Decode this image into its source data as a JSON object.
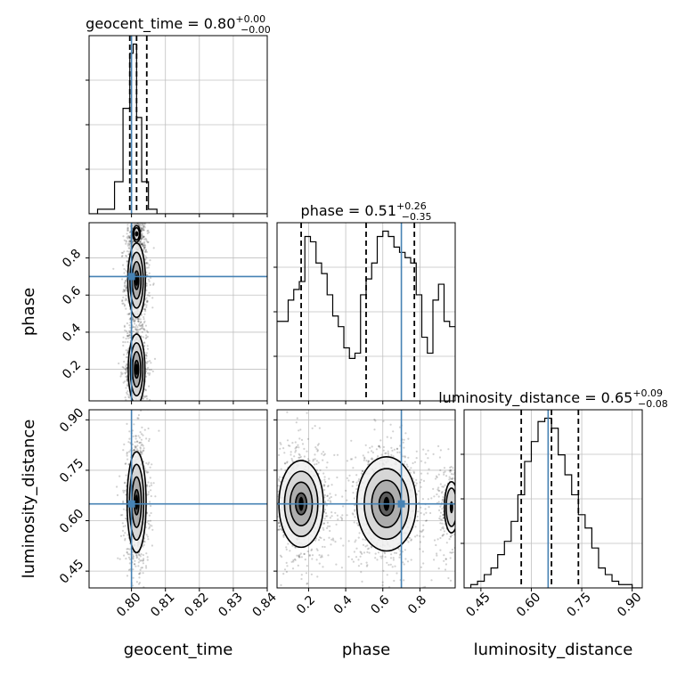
{
  "chart_data": {
    "type": "corner",
    "parameters": [
      "geocent_time",
      "phase",
      "luminosity_distance"
    ],
    "truths": {
      "geocent_time": 0.8,
      "phase": 0.7,
      "luminosity_distance": 0.65
    },
    "colors": {
      "truth": "#4682b4",
      "hist": "#000000",
      "grid": "#c0c0c0",
      "samples": "#000000"
    },
    "grid": true,
    "titles": [
      {
        "param": "geocent_time",
        "prefix": "geocent_time = ",
        "value": "0.80",
        "plus": "+0.00",
        "minus": "−0.00"
      },
      {
        "param": "phase",
        "prefix": "phase = ",
        "value": "0.51",
        "plus": "+0.26",
        "minus": "−0.35"
      },
      {
        "param": "luminosity_distance",
        "prefix": "luminosity_distance = ",
        "value": "0.65",
        "plus": "+0.09",
        "minus": "−0.08"
      }
    ],
    "axes": {
      "geocent_time": {
        "range": [
          0.7875,
          0.84
        ],
        "ticks": [
          0.8,
          0.81,
          0.82,
          0.83,
          0.84
        ],
        "tick_labels": [
          "0.80",
          "0.81",
          "0.82",
          "0.83",
          "0.84"
        ],
        "label": "geocent_time"
      },
      "phase": {
        "range": [
          0.03,
          0.99
        ],
        "ticks": [
          0.2,
          0.4,
          0.6,
          0.8
        ],
        "tick_labels": [
          "0.2",
          "0.4",
          "0.6",
          "0.8"
        ],
        "label": "phase"
      },
      "luminosity_distance": {
        "range": [
          0.4,
          0.93
        ],
        "ticks": [
          0.45,
          0.6,
          0.75,
          0.9
        ],
        "tick_labels": [
          "0.45",
          "0.60",
          "0.75",
          "0.90"
        ],
        "label": "luminosity_distance"
      }
    },
    "histograms": {
      "geocent_time": {
        "edges": [
          0.7875,
          0.79,
          0.795,
          0.7975,
          0.7995,
          0.8005,
          0.8015,
          0.803,
          0.805,
          0.8075,
          0.81,
          0.84
        ],
        "values": [
          0,
          1,
          7,
          23,
          35,
          37,
          21,
          7,
          1,
          0,
          0
        ],
        "quantile_lines": [
          0.7995,
          0.8015,
          0.8045
        ]
      },
      "phase": {
        "edges": [
          0.03,
          0.06,
          0.09,
          0.12,
          0.15,
          0.18,
          0.21,
          0.24,
          0.27,
          0.3,
          0.33,
          0.36,
          0.39,
          0.42,
          0.45,
          0.48,
          0.51,
          0.54,
          0.57,
          0.6,
          0.63,
          0.66,
          0.69,
          0.72,
          0.75,
          0.78,
          0.81,
          0.84,
          0.87,
          0.9,
          0.93,
          0.96,
          0.99
        ],
        "values": [
          30,
          30,
          38,
          42,
          45,
          62,
          60,
          52,
          48,
          40,
          32,
          28,
          20,
          16,
          18,
          40,
          46,
          52,
          62,
          64,
          62,
          58,
          56,
          54,
          52,
          40,
          24,
          18,
          38,
          44,
          30,
          28
        ],
        "quantile_lines": [
          0.16,
          0.51,
          0.77
        ]
      },
      "luminosity_distance": {
        "edges": [
          0.4,
          0.42,
          0.44,
          0.46,
          0.48,
          0.5,
          0.52,
          0.54,
          0.56,
          0.58,
          0.6,
          0.62,
          0.64,
          0.66,
          0.68,
          0.7,
          0.72,
          0.74,
          0.76,
          0.78,
          0.8,
          0.82,
          0.84,
          0.86,
          0.88,
          0.9,
          0.93
        ],
        "values": [
          0,
          1,
          2,
          4,
          6,
          10,
          14,
          20,
          28,
          38,
          44,
          50,
          51,
          48,
          40,
          34,
          28,
          22,
          18,
          12,
          6,
          4,
          2,
          1,
          1,
          0
        ],
        "quantile_lines": [
          0.57,
          0.66,
          0.74
        ]
      }
    },
    "densities": {
      "phase|geocent_time": {
        "modes": [
          {
            "x": 0.8015,
            "y": 0.68,
            "sx": 0.0013,
            "sy": 0.1,
            "w": 1.0
          },
          {
            "x": 0.8015,
            "y": 0.2,
            "sx": 0.0013,
            "sy": 0.1,
            "w": 0.9
          },
          {
            "x": 0.8015,
            "y": 0.93,
            "sx": 0.001,
            "sy": 0.04,
            "w": 0.3
          }
        ]
      },
      "luminosity_distance|geocent_time": {
        "modes": [
          {
            "x": 0.8015,
            "y": 0.655,
            "sx": 0.0014,
            "sy": 0.075,
            "w": 1.0
          }
        ]
      },
      "luminosity_distance|phase": {
        "modes": [
          {
            "x": 0.16,
            "y": 0.65,
            "sx": 0.065,
            "sy": 0.07,
            "w": 0.85
          },
          {
            "x": 0.62,
            "y": 0.65,
            "sx": 0.08,
            "sy": 0.07,
            "w": 1.0
          },
          {
            "x": 0.97,
            "y": 0.64,
            "sx": 0.03,
            "sy": 0.06,
            "w": 0.4
          }
        ]
      }
    }
  }
}
